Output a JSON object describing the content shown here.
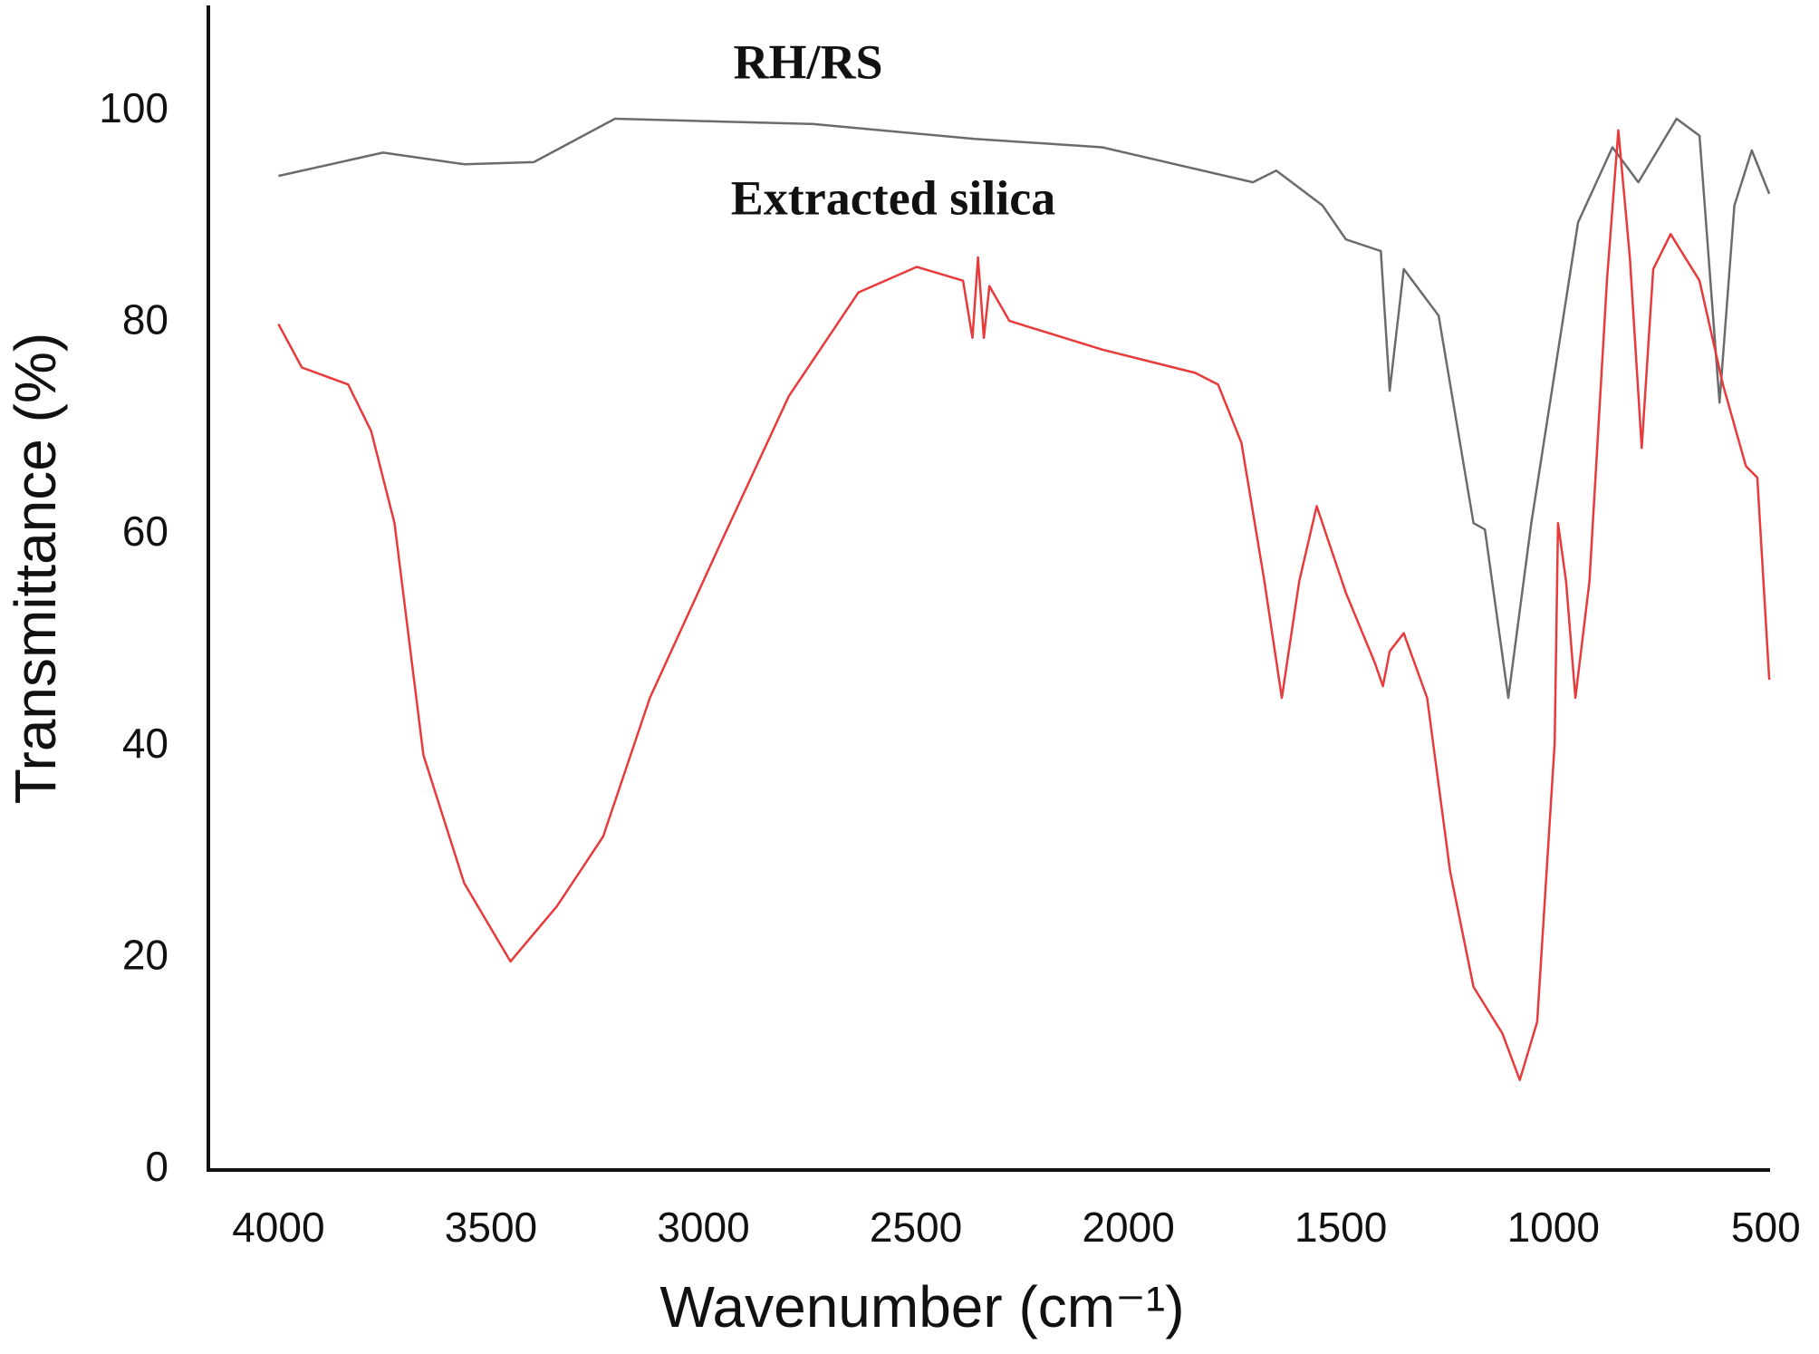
{
  "chart_data": {
    "type": "line",
    "xlabel": "Wavenumber (cm⁻¹)",
    "ylabel": "Transmittance (%)",
    "xlim": [
      4165,
      490
    ],
    "ylim": [
      0,
      110
    ],
    "xticks": [
      4000,
      3500,
      3000,
      2500,
      2000,
      1500,
      1000,
      500
    ],
    "yticks": [
      0,
      20,
      40,
      60,
      80,
      100
    ],
    "grid": false,
    "series": [
      {
        "name": "RH/RS",
        "color": "#6b6b6b",
        "x": [
          4000,
          3754,
          3563,
          3399,
          3208,
          2744,
          2362,
          2062,
          1707,
          1652,
          1543,
          1488,
          1406,
          1385,
          1352,
          1270,
          1188,
          1161,
          1106,
          1052,
          942,
          861,
          800,
          710,
          656,
          609,
          574,
          533,
          492
        ],
        "values": [
          93.9,
          96.1,
          95.0,
          95.2,
          99.3,
          98.8,
          97.4,
          96.6,
          93.3,
          94.4,
          91.1,
          87.9,
          86.8,
          73.6,
          85.1,
          80.7,
          61.1,
          60.5,
          44.6,
          61.1,
          89.5,
          96.6,
          93.3,
          99.3,
          97.7,
          72.5,
          91.1,
          96.3,
          92.2
        ]
      },
      {
        "name": "Extracted silica",
        "color": "#e83a3a",
        "x": [
          4000,
          3945,
          3836,
          3782,
          3727,
          3659,
          3563,
          3454,
          3345,
          3236,
          3126,
          2963,
          2799,
          2635,
          2498,
          2389,
          2367,
          2354,
          2340,
          2327,
          2280,
          2062,
          1843,
          1789,
          1734,
          1680,
          1639,
          1598,
          1557,
          1488,
          1420,
          1401,
          1385,
          1352,
          1297,
          1243,
          1188,
          1120,
          1079,
          1038,
          997,
          989,
          970,
          948,
          915,
          874,
          847,
          820,
          792,
          765,
          724,
          656,
          601,
          547,
          520,
          492
        ],
        "values": [
          79.9,
          75.8,
          74.2,
          69.8,
          61.1,
          39.2,
          27.1,
          19.7,
          24.9,
          31.5,
          44.6,
          58.9,
          73.1,
          82.9,
          85.3,
          84.0,
          78.6,
          86.2,
          78.6,
          83.5,
          80.2,
          77.5,
          75.3,
          74.2,
          68.7,
          55.6,
          44.6,
          55.6,
          62.7,
          54.5,
          47.9,
          45.7,
          49.0,
          50.7,
          44.6,
          28.2,
          17.3,
          12.9,
          8.5,
          14.0,
          40.3,
          61.1,
          55.6,
          44.6,
          55.6,
          84.0,
          98.2,
          86.2,
          68.2,
          85.1,
          88.4,
          84.0,
          74.2,
          66.5,
          65.4,
          46.3
        ]
      }
    ]
  }
}
